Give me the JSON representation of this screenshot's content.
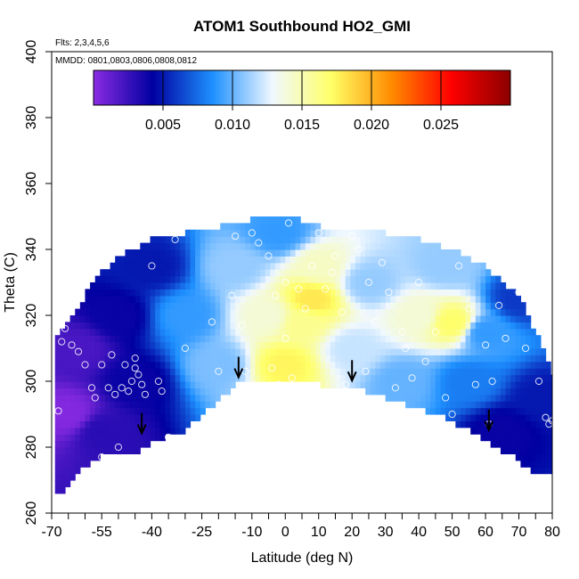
{
  "chart_data": {
    "type": "heatmap",
    "title": "ATOM1 Southbound HO2_GMI",
    "flights_note": "Flts: 2,3,4,5,6",
    "dates_note": "MMDD: 0801,0803,0806,0808,0812",
    "xlabel": "Latitude (deg N)",
    "ylabel": "Theta (C)",
    "xlim": [
      -70,
      80
    ],
    "ylim": [
      260,
      400
    ],
    "x_ticks": [
      -70,
      -55,
      -40,
      -25,
      -10,
      0,
      10,
      20,
      30,
      40,
      50,
      60,
      70,
      80
    ],
    "y_ticks": [
      260,
      280,
      300,
      320,
      340,
      360,
      380,
      400
    ],
    "colorbar": {
      "range": [
        0,
        0.03
      ],
      "ticks": [
        0.005,
        0.01,
        0.015,
        0.02,
        0.025
      ],
      "tick_labels": [
        "0.005",
        "0.010",
        "0.015",
        "0.020",
        "0.025"
      ],
      "colors": [
        "#8a2be2",
        "#0000a0",
        "#1e90ff",
        "#f0f8ff",
        "#ffff66",
        "#ff8c00",
        "#ff0000",
        "#8b0000"
      ]
    },
    "boundary": {
      "upper": [
        [
          -69,
          312
        ],
        [
          -65,
          318
        ],
        [
          -60,
          326
        ],
        [
          -55,
          333
        ],
        [
          -50,
          338
        ],
        [
          -40,
          343
        ],
        [
          -30,
          345
        ],
        [
          -20,
          347
        ],
        [
          -10,
          349
        ],
        [
          -3,
          350
        ],
        [
          5,
          349
        ],
        [
          10,
          347
        ],
        [
          20,
          346
        ],
        [
          30,
          345
        ],
        [
          40,
          343
        ],
        [
          50,
          340
        ],
        [
          60,
          335
        ],
        [
          70,
          326
        ],
        [
          75,
          315
        ],
        [
          80,
          302
        ]
      ],
      "lower": [
        [
          80,
          272
        ],
        [
          75,
          272
        ],
        [
          70,
          276
        ],
        [
          60,
          282
        ],
        [
          50,
          288
        ],
        [
          40,
          292
        ],
        [
          30,
          295
        ],
        [
          20,
          298
        ],
        [
          10,
          299
        ],
        [
          0,
          300
        ],
        [
          -10,
          300
        ],
        [
          -15,
          299
        ],
        [
          -20,
          294
        ],
        [
          -30,
          285
        ],
        [
          -40,
          282
        ],
        [
          -45,
          278
        ],
        [
          -50,
          278
        ],
        [
          -55,
          277
        ],
        [
          -60,
          274
        ],
        [
          -65,
          268
        ],
        [
          -68,
          266
        ],
        [
          -69,
          266
        ]
      ]
    },
    "field_anchors": [
      {
        "lat": -65,
        "theta": 290,
        "value": 0.0002
      },
      {
        "lat": -62,
        "theta": 310,
        "value": 0.002
      },
      {
        "lat": -55,
        "theta": 285,
        "value": 0.003
      },
      {
        "lat": -50,
        "theta": 320,
        "value": 0.004
      },
      {
        "lat": -45,
        "theta": 300,
        "value": 0.004
      },
      {
        "lat": -40,
        "theta": 335,
        "value": 0.005
      },
      {
        "lat": -30,
        "theta": 320,
        "value": 0.009
      },
      {
        "lat": -20,
        "theta": 305,
        "value": 0.0105
      },
      {
        "lat": -15,
        "theta": 335,
        "value": 0.011
      },
      {
        "lat": -5,
        "theta": 320,
        "value": 0.014
      },
      {
        "lat": 0,
        "theta": 305,
        "value": 0.0175
      },
      {
        "lat": 5,
        "theta": 318,
        "value": 0.016
      },
      {
        "lat": 8,
        "theta": 325,
        "value": 0.018
      },
      {
        "lat": 10,
        "theta": 335,
        "value": 0.0145
      },
      {
        "lat": 20,
        "theta": 310,
        "value": 0.012
      },
      {
        "lat": 25,
        "theta": 330,
        "value": 0.011
      },
      {
        "lat": 35,
        "theta": 300,
        "value": 0.01
      },
      {
        "lat": 40,
        "theta": 320,
        "value": 0.014
      },
      {
        "lat": 50,
        "theta": 318,
        "value": 0.017
      },
      {
        "lat": 48,
        "theta": 335,
        "value": 0.011
      },
      {
        "lat": 55,
        "theta": 300,
        "value": 0.008
      },
      {
        "lat": 60,
        "theta": 315,
        "value": 0.009
      },
      {
        "lat": 65,
        "theta": 285,
        "value": 0.004
      },
      {
        "lat": 70,
        "theta": 325,
        "value": 0.006
      },
      {
        "lat": 77,
        "theta": 295,
        "value": 0.005
      },
      {
        "lat": -2,
        "theta": 345,
        "value": 0.009
      }
    ],
    "observations": [
      [
        -68,
        291
      ],
      [
        -67,
        312
      ],
      [
        -66,
        316
      ],
      [
        -64,
        311
      ],
      [
        -62,
        309
      ],
      [
        -60,
        305
      ],
      [
        -58,
        298
      ],
      [
        -57,
        295
      ],
      [
        -55,
        305
      ],
      [
        -55,
        277
      ],
      [
        -53,
        298
      ],
      [
        -52,
        308
      ],
      [
        -51,
        296
      ],
      [
        -50,
        280
      ],
      [
        -49,
        298
      ],
      [
        -48,
        305
      ],
      [
        -47,
        297
      ],
      [
        -46,
        300
      ],
      [
        -45,
        307
      ],
      [
        -45,
        304
      ],
      [
        -44,
        302
      ],
      [
        -43,
        299
      ],
      [
        -42,
        296
      ],
      [
        -42,
        278
      ],
      [
        -40,
        335
      ],
      [
        -38,
        300
      ],
      [
        -37,
        297
      ],
      [
        -35,
        283
      ],
      [
        -33,
        343
      ],
      [
        -30,
        310
      ],
      [
        -25,
        287
      ],
      [
        -22,
        318
      ],
      [
        -20,
        303
      ],
      [
        -18,
        292
      ],
      [
        -16,
        326
      ],
      [
        -15,
        344
      ],
      [
        -13,
        317
      ],
      [
        -12,
        303
      ],
      [
        -10,
        345
      ],
      [
        -8,
        342
      ],
      [
        -5,
        338
      ],
      [
        -4,
        304
      ],
      [
        -3,
        326
      ],
      [
        -2,
        299
      ],
      [
        0,
        330
      ],
      [
        0,
        313
      ],
      [
        1,
        348
      ],
      [
        2,
        301
      ],
      [
        4,
        328
      ],
      [
        6,
        322
      ],
      [
        8,
        335
      ],
      [
        10,
        345
      ],
      [
        12,
        328
      ],
      [
        14,
        333
      ],
      [
        15,
        338
      ],
      [
        17,
        321
      ],
      [
        18,
        299
      ],
      [
        20,
        344
      ],
      [
        22,
        340
      ],
      [
        24,
        303
      ],
      [
        25,
        330
      ],
      [
        27,
        318
      ],
      [
        29,
        336
      ],
      [
        31,
        327
      ],
      [
        33,
        298
      ],
      [
        35,
        315
      ],
      [
        36,
        310
      ],
      [
        38,
        301
      ],
      [
        40,
        330
      ],
      [
        42,
        306
      ],
      [
        45,
        315
      ],
      [
        48,
        295
      ],
      [
        50,
        290
      ],
      [
        52,
        335
      ],
      [
        55,
        322
      ],
      [
        57,
        299
      ],
      [
        60,
        311
      ],
      [
        61,
        287
      ],
      [
        62,
        300
      ],
      [
        64,
        323
      ],
      [
        66,
        313
      ],
      [
        68,
        332
      ],
      [
        70,
        327
      ],
      [
        72,
        310
      ],
      [
        74,
        330
      ],
      [
        76,
        300
      ],
      [
        78,
        289
      ],
      [
        79,
        287
      ],
      [
        80,
        288
      ]
    ],
    "arrows": [
      {
        "lat": -43,
        "theta": 285
      },
      {
        "lat": -14,
        "theta": 302
      },
      {
        "lat": 20,
        "theta": 301
      },
      {
        "lat": 61,
        "theta": 286
      }
    ]
  }
}
